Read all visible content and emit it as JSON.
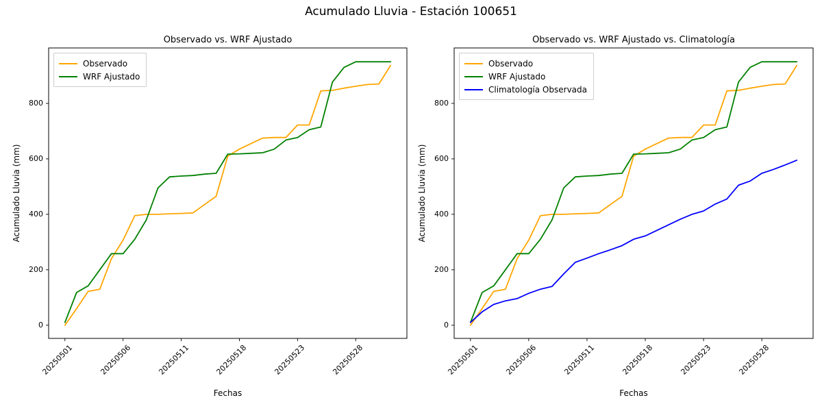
{
  "suptitle": "Acumulado Lluvia - Estación 100651",
  "chart_data": [
    {
      "type": "line",
      "title": "Observado vs. WRF Ajustado",
      "xlabel": "Fechas",
      "ylabel": "Acumulado Lluvia (mm)",
      "x_tick_labels": [
        "20250501",
        "20250506",
        "20250511",
        "20250518",
        "20250523",
        "20250528"
      ],
      "x_tick_indices": [
        0,
        5,
        10,
        15,
        20,
        25
      ],
      "y_ticks": [
        0,
        200,
        400,
        600,
        800
      ],
      "xlim": [
        -1.4,
        29.4
      ],
      "ylim": [
        -47.5,
        1000
      ],
      "grid": false,
      "legend_position": "upper left",
      "series": [
        {
          "name": "Observado",
          "color": "#FFA500",
          "values": [
            0,
            60,
            122,
            130,
            240,
            307,
            395,
            400,
            400,
            402,
            403,
            405,
            435,
            465,
            610,
            635,
            655,
            675,
            677,
            677,
            722,
            722,
            845,
            847,
            855,
            862,
            868,
            870,
            937
          ]
        },
        {
          "name": "WRF Ajustado",
          "color": "#008000",
          "values": [
            10,
            118,
            142,
            200,
            258,
            258,
            310,
            380,
            495,
            535,
            538,
            540,
            545,
            548,
            617,
            618,
            620,
            622,
            635,
            668,
            677,
            705,
            715,
            877,
            930,
            950,
            950,
            950,
            950
          ]
        }
      ]
    },
    {
      "type": "line",
      "title": "Observado vs. WRF Ajustado vs. Climatología",
      "xlabel": "Fechas",
      "ylabel": "Acumulado Lluvia (mm)",
      "x_tick_labels": [
        "20250501",
        "20250506",
        "20250511",
        "20250518",
        "20250523",
        "20250528"
      ],
      "x_tick_indices": [
        0,
        5,
        10,
        15,
        20,
        25
      ],
      "y_ticks": [
        0,
        200,
        400,
        600,
        800
      ],
      "xlim": [
        -1.4,
        29.4
      ],
      "ylim": [
        -47.5,
        1000
      ],
      "grid": false,
      "legend_position": "upper left",
      "series": [
        {
          "name": "Observado",
          "color": "#FFA500",
          "values": [
            0,
            60,
            122,
            130,
            240,
            307,
            395,
            400,
            400,
            402,
            403,
            405,
            435,
            465,
            610,
            635,
            655,
            675,
            677,
            677,
            722,
            722,
            845,
            847,
            855,
            862,
            868,
            870,
            937
          ]
        },
        {
          "name": "WRF Ajustado",
          "color": "#008000",
          "values": [
            10,
            118,
            142,
            200,
            258,
            258,
            310,
            380,
            495,
            535,
            538,
            540,
            545,
            548,
            617,
            618,
            620,
            622,
            635,
            668,
            677,
            705,
            715,
            877,
            930,
            950,
            950,
            950,
            950
          ]
        },
        {
          "name": "Climatología Observada",
          "color": "#0000FF",
          "values": [
            10,
            48,
            75,
            88,
            96,
            115,
            130,
            140,
            185,
            227,
            242,
            258,
            272,
            287,
            310,
            322,
            342,
            362,
            382,
            400,
            412,
            437,
            455,
            505,
            520,
            548,
            562,
            578,
            595
          ]
        }
      ]
    }
  ]
}
